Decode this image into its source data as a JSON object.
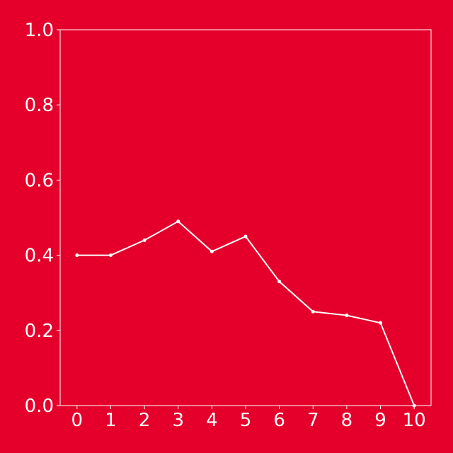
{
  "colors": {
    "background": "#e4002b",
    "foreground": "#ffffff"
  },
  "chart_data": {
    "type": "line",
    "title": "",
    "xlabel": "",
    "ylabel": "",
    "x": [
      0,
      1,
      2,
      3,
      4,
      5,
      6,
      7,
      8,
      9,
      10
    ],
    "series": [
      {
        "values": [
          0.4,
          0.4,
          0.44,
          0.49,
          0.41,
          0.45,
          0.33,
          0.25,
          0.24,
          0.22,
          0.0
        ]
      }
    ],
    "xlim": [
      -0.5,
      10.5
    ],
    "ylim": [
      0.0,
      1.0
    ],
    "x_ticks": [
      "0",
      "1",
      "2",
      "3",
      "4",
      "5",
      "6",
      "7",
      "8",
      "9",
      "10"
    ],
    "y_ticks": [
      "0.0",
      "0.2",
      "0.4",
      "0.6",
      "0.8",
      "1.0"
    ],
    "y_tick_values": [
      0.0,
      0.2,
      0.4,
      0.6,
      0.8,
      1.0
    ],
    "grid": false,
    "markers": true
  }
}
